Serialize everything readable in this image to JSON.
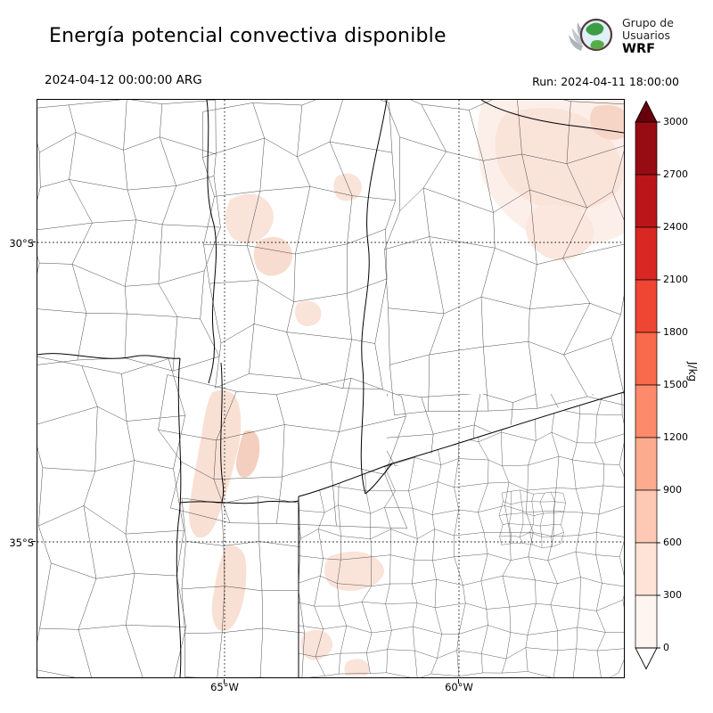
{
  "header": {
    "title": "Energía potencial convectiva disponible",
    "valid_time": "2024-04-12 00:00:00 ARG",
    "run_label": "Run: 2024-04-11 18:00:00"
  },
  "logo": {
    "line1": "Grupo de",
    "line2": "Usuarios",
    "line3": "WRF"
  },
  "axes": {
    "lat_labels": [
      "30°S",
      "35°S"
    ],
    "lon_labels": [
      "65°W",
      "60°W"
    ]
  },
  "colorbar": {
    "unit": "J/kg",
    "ticks": [
      "3000",
      "2700",
      "2400",
      "2100",
      "1800",
      "1500",
      "1200",
      "900",
      "600",
      "300",
      "0"
    ],
    "segment_colors_bottom_to_top": [
      "#fff5f0",
      "#fee3d6",
      "#fdc9b4",
      "#fcab8f",
      "#fc8a6b",
      "#f9694c",
      "#ef4533",
      "#d92723",
      "#bb151a",
      "#970b13"
    ],
    "over_color": "#67000d",
    "under_color": "#ffffff"
  },
  "map": {
    "background": "#ffffff",
    "boundary_color": "#000000",
    "low_cape_tint": "#fae3d9"
  }
}
